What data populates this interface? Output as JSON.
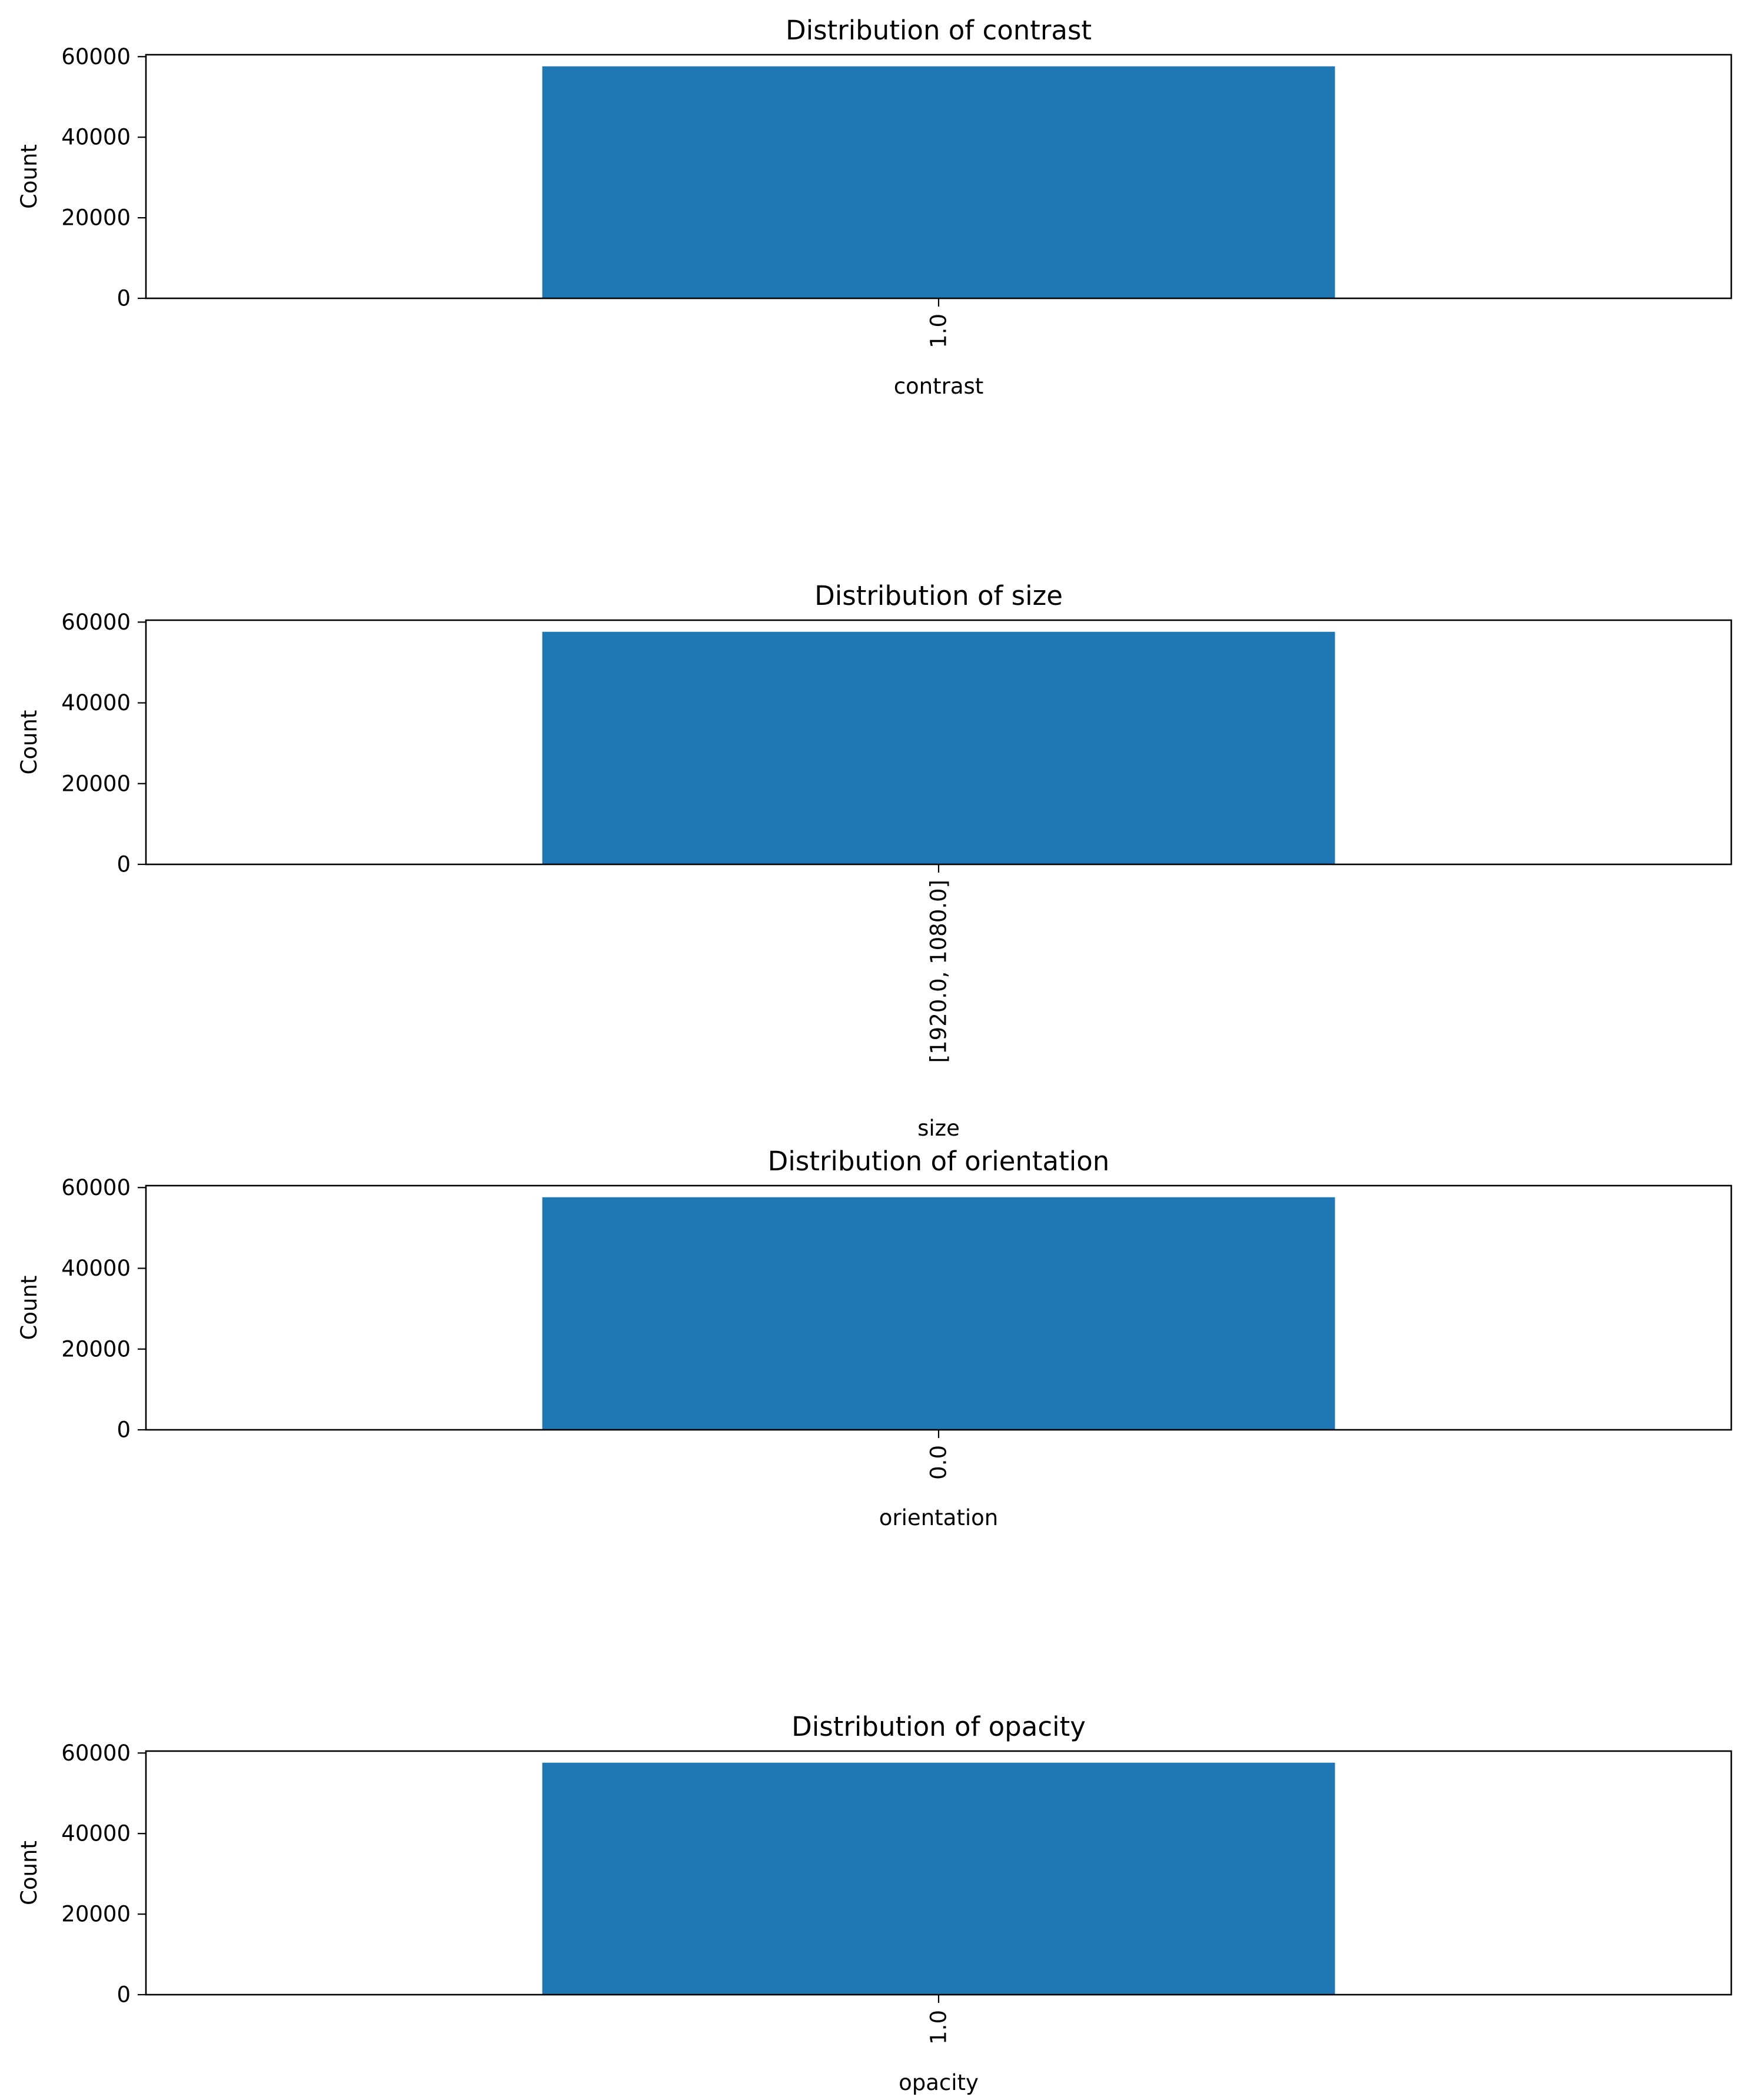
{
  "chart_data": [
    {
      "type": "bar",
      "title": "Distribution of contrast",
      "xlabel": "contrast",
      "ylabel": "Count",
      "categories": [
        "1.0"
      ],
      "values": [
        57600
      ],
      "ylim": [
        0,
        60480
      ],
      "yticks": [
        0,
        20000,
        40000,
        60000
      ],
      "ytick_labels": [
        "0",
        "20000",
        "40000",
        "60000"
      ],
      "xtick_rotation": 90,
      "bar_color": "#1f77b4",
      "grid": false,
      "legend": false
    },
    {
      "type": "bar",
      "title": "Distribution of size",
      "xlabel": "size",
      "ylabel": "Count",
      "categories": [
        "[1920.0, 1080.0]"
      ],
      "values": [
        57600
      ],
      "ylim": [
        0,
        60480
      ],
      "yticks": [
        0,
        20000,
        40000,
        60000
      ],
      "ytick_labels": [
        "0",
        "20000",
        "40000",
        "60000"
      ],
      "xtick_rotation": 90,
      "bar_color": "#1f77b4",
      "grid": false,
      "legend": false
    },
    {
      "type": "bar",
      "title": "Distribution of orientation",
      "xlabel": "orientation",
      "ylabel": "Count",
      "categories": [
        "0.0"
      ],
      "values": [
        57600
      ],
      "ylim": [
        0,
        60480
      ],
      "yticks": [
        0,
        20000,
        40000,
        60000
      ],
      "ytick_labels": [
        "0",
        "20000",
        "40000",
        "60000"
      ],
      "xtick_rotation": 90,
      "bar_color": "#1f77b4",
      "grid": false,
      "legend": false
    },
    {
      "type": "bar",
      "title": "Distribution of opacity",
      "xlabel": "opacity",
      "ylabel": "Count",
      "categories": [
        "1.0"
      ],
      "values": [
        57600
      ],
      "ylim": [
        0,
        60480
      ],
      "yticks": [
        0,
        20000,
        40000,
        60000
      ],
      "ytick_labels": [
        "0",
        "20000",
        "40000",
        "60000"
      ],
      "xtick_rotation": 90,
      "bar_color": "#1f77b4",
      "grid": false,
      "legend": false
    }
  ]
}
